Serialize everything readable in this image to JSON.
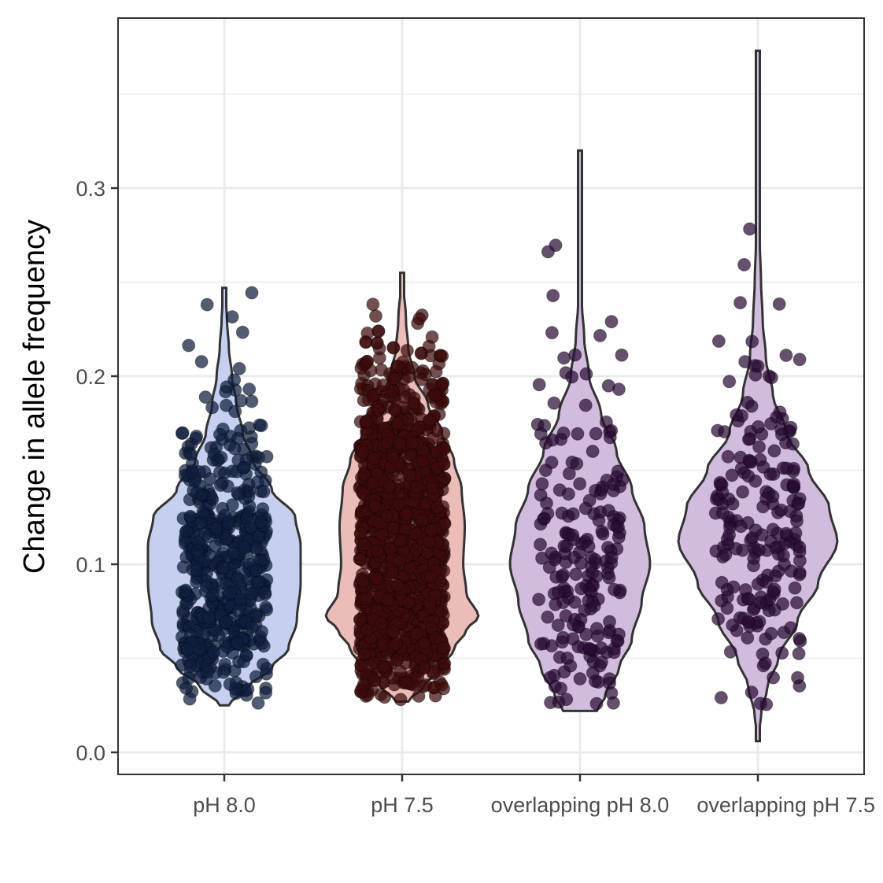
{
  "chart_data": {
    "type": "violin",
    "title": "",
    "xlabel": "",
    "ylabel": "Change in allele frequency",
    "ylim": [
      -0.012,
      0.393
    ],
    "y_ticks": [
      0.0,
      0.1,
      0.2,
      0.3
    ],
    "y_tick_labels": [
      "0.0",
      "0.1",
      "0.2",
      "0.3"
    ],
    "grid": true,
    "categories": [
      "pH 8.0",
      "pH 7.5",
      "overlapping pH 8.0",
      "overlapping pH 7.5"
    ],
    "series": [
      {
        "category": "pH 8.0",
        "fill": "#c5cff0",
        "point_color": "#0f1e3f",
        "range": [
          0.025,
          0.247
        ],
        "n_points": 520,
        "density_profile": [
          [
            0.025,
            0.06
          ],
          [
            0.035,
            0.32
          ],
          [
            0.045,
            0.62
          ],
          [
            0.055,
            0.84
          ],
          [
            0.07,
            0.95
          ],
          [
            0.09,
            1.0
          ],
          [
            0.11,
            1.0
          ],
          [
            0.125,
            0.93
          ],
          [
            0.14,
            0.62
          ],
          [
            0.155,
            0.38
          ],
          [
            0.17,
            0.24
          ],
          [
            0.185,
            0.16
          ],
          [
            0.2,
            0.1
          ],
          [
            0.215,
            0.06
          ],
          [
            0.23,
            0.035
          ],
          [
            0.247,
            0.0
          ]
        ]
      },
      {
        "category": "pH 7.5",
        "fill": "#ecbcb8",
        "point_color": "#3d0b0b",
        "range": [
          0.027,
          0.255
        ],
        "n_points": 1400,
        "density_profile": [
          [
            0.027,
            0.08
          ],
          [
            0.035,
            0.28
          ],
          [
            0.045,
            0.52
          ],
          [
            0.055,
            0.68
          ],
          [
            0.065,
            0.84
          ],
          [
            0.072,
            1.0
          ],
          [
            0.085,
            0.84
          ],
          [
            0.1,
            0.8
          ],
          [
            0.12,
            0.82
          ],
          [
            0.14,
            0.78
          ],
          [
            0.155,
            0.68
          ],
          [
            0.17,
            0.52
          ],
          [
            0.185,
            0.34
          ],
          [
            0.2,
            0.16
          ],
          [
            0.215,
            0.08
          ],
          [
            0.23,
            0.05
          ],
          [
            0.255,
            0.0
          ]
        ]
      },
      {
        "category": "overlapping pH 8.0",
        "fill": "#d2bcde",
        "point_color": "#2a0d35",
        "range": [
          0.022,
          0.32
        ],
        "n_points": 200,
        "density_profile": [
          [
            0.022,
            0.24
          ],
          [
            0.03,
            0.36
          ],
          [
            0.045,
            0.56
          ],
          [
            0.06,
            0.74
          ],
          [
            0.08,
            0.88
          ],
          [
            0.1,
            1.0
          ],
          [
            0.12,
            0.92
          ],
          [
            0.14,
            0.74
          ],
          [
            0.16,
            0.52
          ],
          [
            0.18,
            0.3
          ],
          [
            0.2,
            0.13
          ],
          [
            0.22,
            0.06
          ],
          [
            0.24,
            0.025
          ],
          [
            0.26,
            0.015
          ],
          [
            0.28,
            0.012
          ],
          [
            0.3,
            0.01
          ],
          [
            0.32,
            0.0
          ]
        ]
      },
      {
        "category": "overlapping pH 7.5",
        "fill": "#d2bcde",
        "point_color": "#2a0d35",
        "range": [
          0.006,
          0.373
        ],
        "n_points": 200,
        "density_profile": [
          [
            0.006,
            0.0
          ],
          [
            0.02,
            0.04
          ],
          [
            0.035,
            0.12
          ],
          [
            0.05,
            0.26
          ],
          [
            0.07,
            0.5
          ],
          [
            0.09,
            0.76
          ],
          [
            0.112,
            1.0
          ],
          [
            0.13,
            0.9
          ],
          [
            0.15,
            0.64
          ],
          [
            0.17,
            0.36
          ],
          [
            0.19,
            0.19
          ],
          [
            0.21,
            0.1
          ],
          [
            0.23,
            0.06
          ],
          [
            0.25,
            0.04
          ],
          [
            0.27,
            0.025
          ],
          [
            0.3,
            0.015
          ],
          [
            0.33,
            0.01
          ],
          [
            0.36,
            0.006
          ],
          [
            0.373,
            0.0
          ]
        ]
      }
    ]
  }
}
